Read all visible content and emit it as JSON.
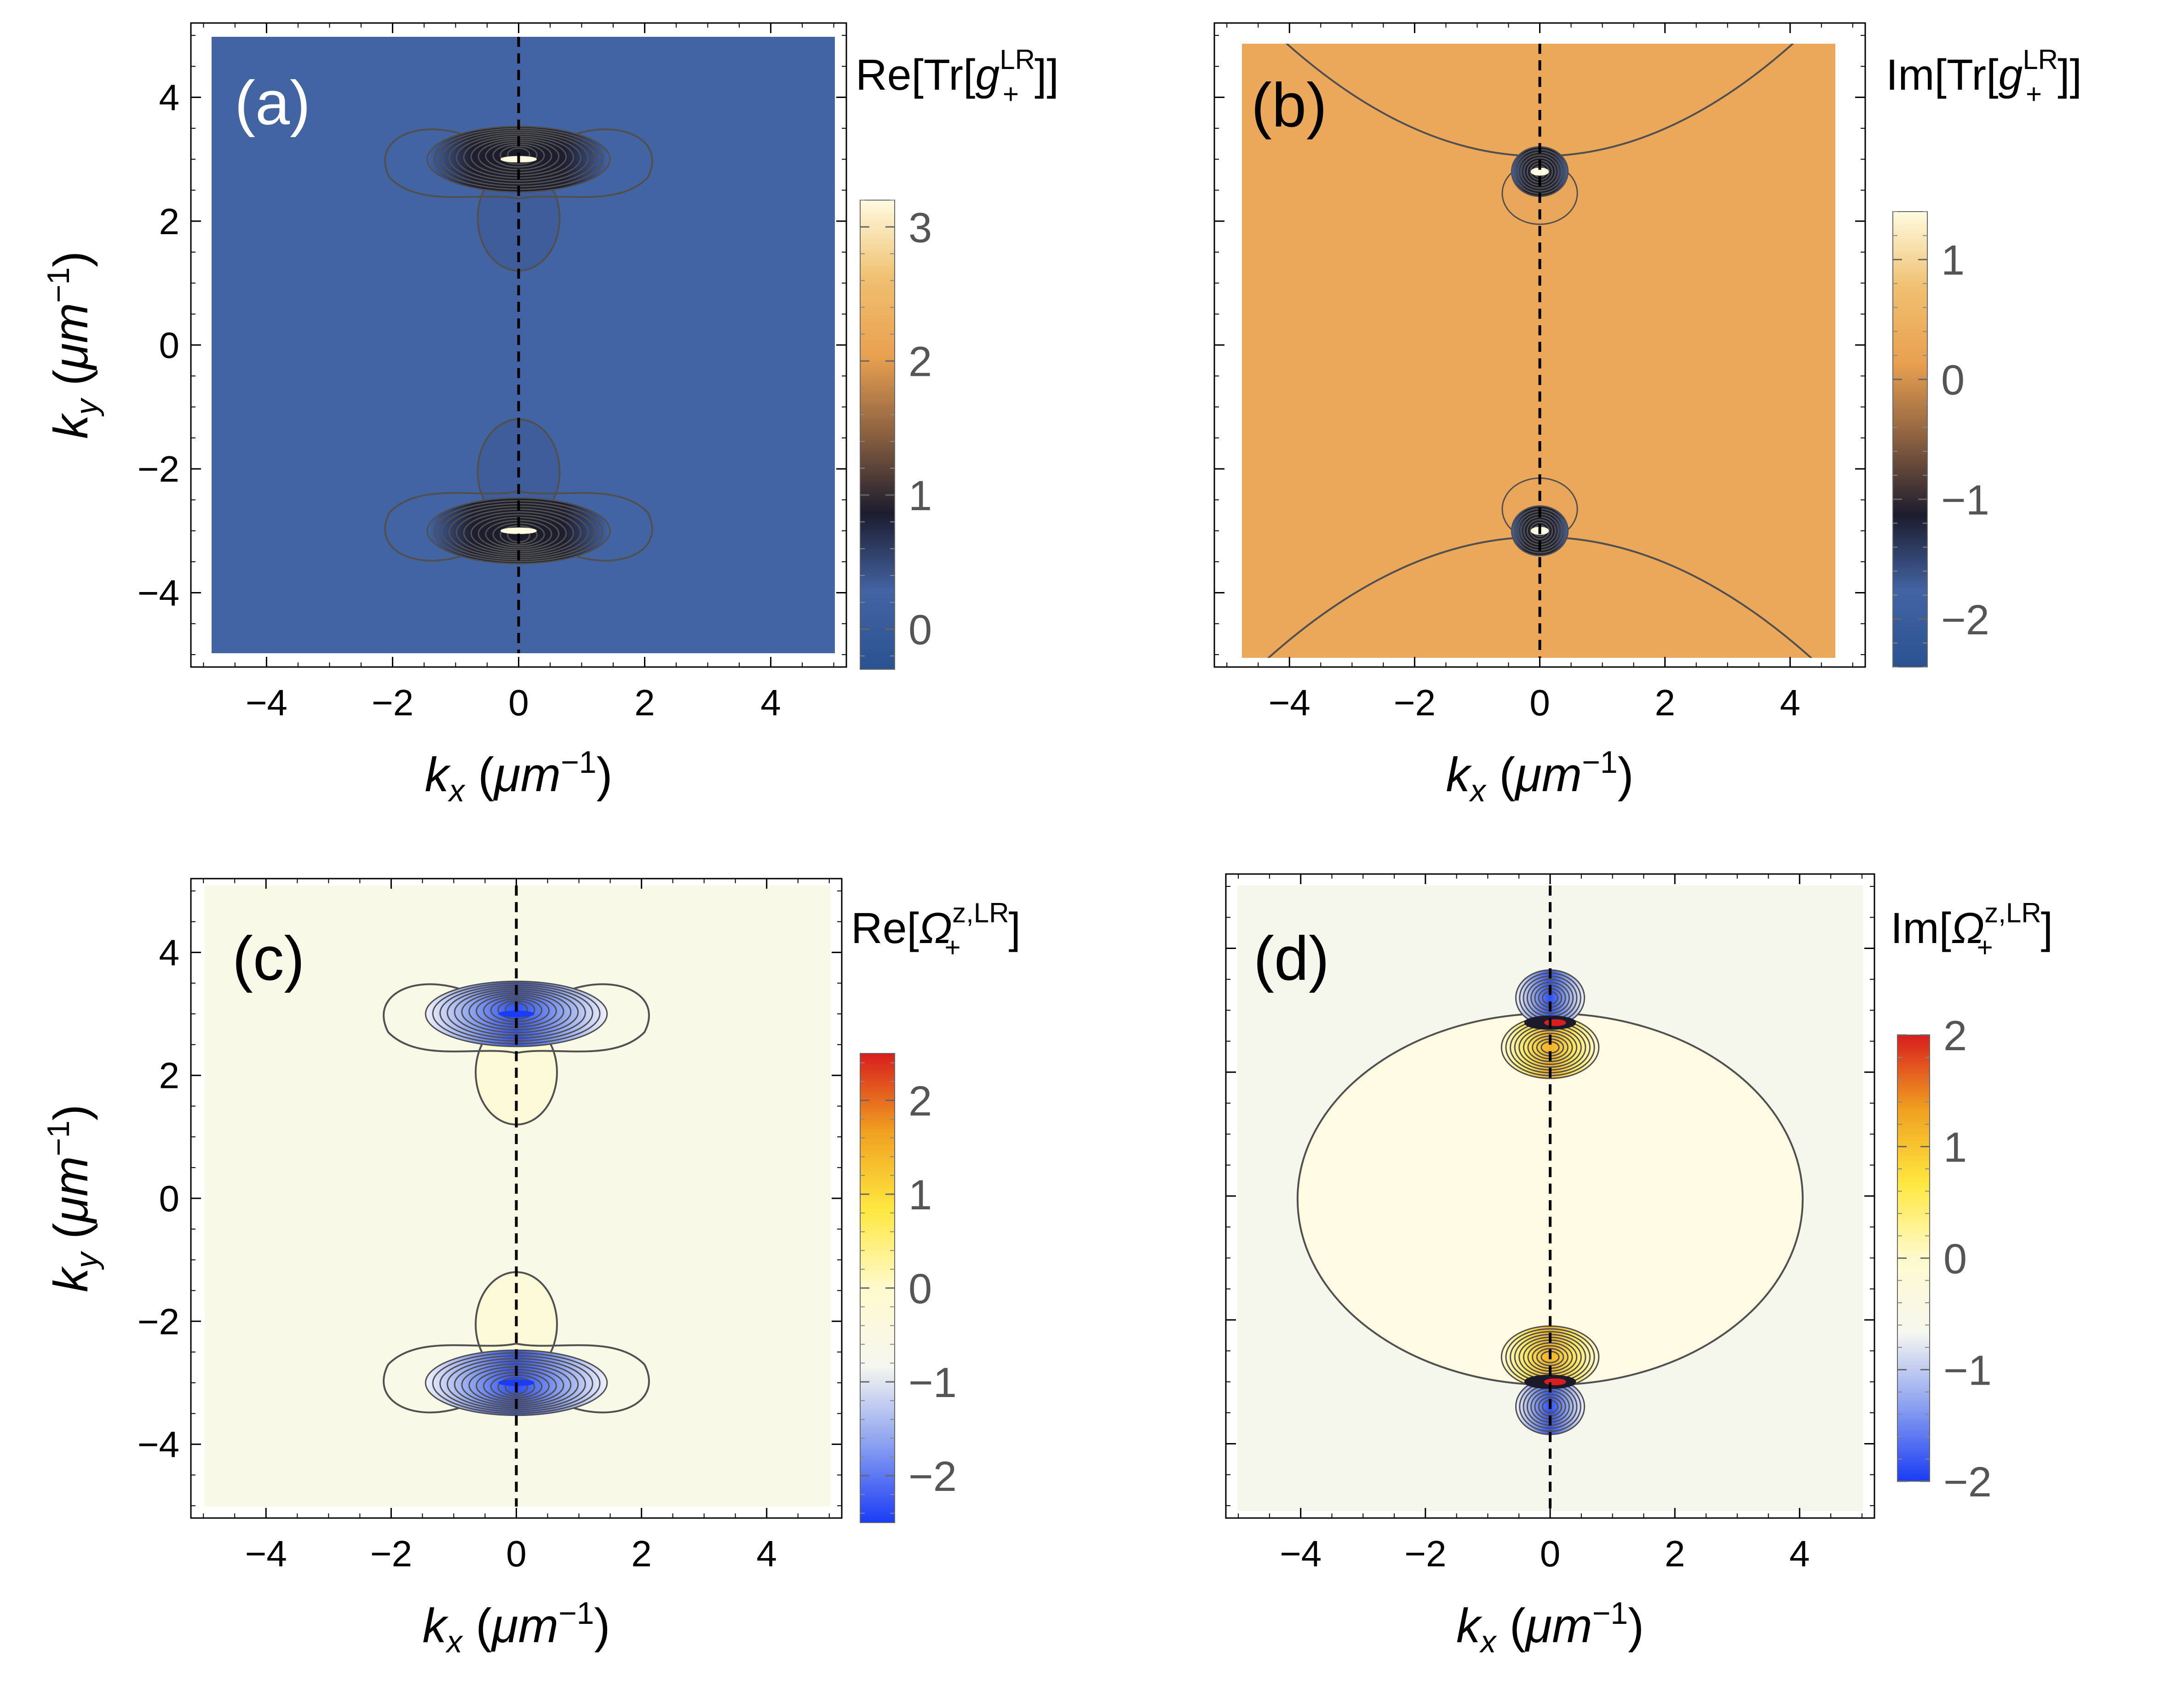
{
  "chart_data": [
    {
      "type": "heatmap",
      "panel": "(a)",
      "colorbar_title": {
        "pre": "Re[Tr[",
        "sym": "g",
        "sub": "+",
        "sup": "LR",
        "post": "]]"
      },
      "colorbar_ticks": [
        3,
        2,
        1,
        0
      ],
      "colorbar_range": [
        -0.3,
        3.2
      ],
      "colormap": "sunset",
      "background": "#4364a3",
      "x_ticks": [
        -4,
        -2,
        0,
        2,
        4
      ],
      "y_ticks": [
        4,
        2,
        0,
        -2,
        -4
      ],
      "xlim": [
        -5.2,
        5.2
      ],
      "ylim": [
        -5.2,
        5.2
      ],
      "show_x_label": true,
      "show_y_label": true,
      "show_y_ticklabels": true,
      "feature": "dipole-pair",
      "cusp_y": [
        3.0,
        -3.0
      ],
      "dashed_line_x": 0
    },
    {
      "type": "heatmap",
      "panel": "(b)",
      "colorbar_title": {
        "pre": "Im[Tr[",
        "sym": "g",
        "sub": "+",
        "sup": "LR",
        "post": "]]"
      },
      "colorbar_ticks": [
        1,
        0,
        -1,
        -2
      ],
      "colorbar_range": [
        -2.4,
        1.4
      ],
      "colormap": "sunset",
      "background": "#eca85a",
      "x_ticks": [
        -4,
        -2,
        0,
        2,
        4
      ],
      "y_ticks": [
        4,
        2,
        0,
        -2,
        -4
      ],
      "xlim": [
        -5.2,
        5.2
      ],
      "ylim": [
        -5.2,
        5.2
      ],
      "show_x_label": true,
      "show_y_label": false,
      "show_y_ticklabels": false,
      "feature": "parabola-pair",
      "cusp_y": [
        2.8,
        -3.0
      ],
      "dashed_line_x": 0
    },
    {
      "type": "heatmap",
      "panel": "(c)",
      "colorbar_title": {
        "pre": "Re[",
        "sym": "Ω",
        "sub": "+",
        "sup": "z,LR",
        "post": "]"
      },
      "colorbar_ticks": [
        2,
        1,
        0,
        -1,
        -2
      ],
      "colorbar_range": [
        -2.5,
        2.5
      ],
      "colormap": "diverging",
      "background": "#f8f9e6",
      "x_ticks": [
        -4,
        -2,
        0,
        2,
        4
      ],
      "y_ticks": [
        4,
        2,
        0,
        -2,
        -4
      ],
      "xlim": [
        -5.2,
        5.2
      ],
      "ylim": [
        -5.2,
        5.2
      ],
      "show_x_label": true,
      "show_y_label": true,
      "show_y_ticklabels": true,
      "feature": "dipole-pair",
      "cusp_y": [
        3.0,
        -3.0
      ],
      "dashed_line_x": 0
    },
    {
      "type": "heatmap",
      "panel": "(d)",
      "colorbar_title": {
        "pre": "Im[",
        "sym": "Ω",
        "sub": "+",
        "sup": "z,LR",
        "post": "]"
      },
      "colorbar_ticks": [
        2,
        1,
        0,
        -1,
        -2
      ],
      "colorbar_range": [
        -2.0,
        2.0
      ],
      "colormap": "diverging",
      "background": "#f6f7ec",
      "x_ticks": [
        -4,
        -2,
        0,
        2,
        4
      ],
      "y_ticks": [
        4,
        2,
        0,
        -2,
        -4
      ],
      "xlim": [
        -5.2,
        5.2
      ],
      "ylim": [
        -5.2,
        5.2
      ],
      "show_x_label": true,
      "show_y_label": false,
      "show_y_ticklabels": false,
      "feature": "ellipse-pair",
      "cusp_y": [
        2.8,
        -3.0
      ],
      "dashed_line_x": 0
    }
  ],
  "axis_labels": {
    "x": {
      "sym": "k",
      "sub": "x",
      "unit": "μm",
      "exp": "−1"
    },
    "y": {
      "sym": "k",
      "sub": "y",
      "unit": "μm",
      "exp": "−1"
    }
  },
  "colors": {
    "contour": "#505050",
    "dashed": "#000000",
    "sunset_stops": [
      "#2a5290",
      "#4364a3",
      "#1c1c2e",
      "#8a6040",
      "#e8a050",
      "#f0c070",
      "#fffbe0"
    ],
    "diverging_stops": [
      "#1a3cf5",
      "#8aa0f0",
      "#f6f7f0",
      "#fffacd",
      "#ffe840",
      "#f0a020",
      "#d81e1e"
    ]
  }
}
